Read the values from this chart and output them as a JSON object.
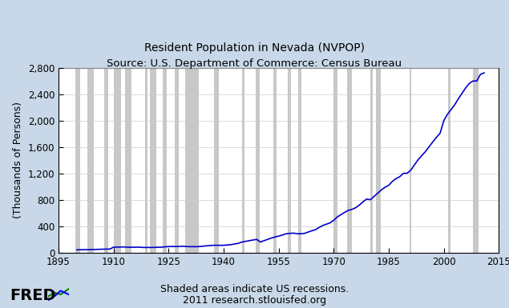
{
  "title_line1": "Resident Population in Nevada (NVPOP)",
  "title_line2": "Source: U.S. Department of Commerce: Census Bureau",
  "ylabel": "(Thousands of Persons)",
  "xlabel_note1": "Shaded areas indicate US recessions.",
  "xlabel_note2": "2011 research.stlouisfed.org",
  "xlim": [
    1895,
    2015
  ],
  "ylim": [
    0,
    2800
  ],
  "yticks": [
    0,
    400,
    800,
    1200,
    1600,
    2000,
    2400,
    2800
  ],
  "xticks": [
    1895,
    1910,
    1925,
    1940,
    1955,
    1970,
    1985,
    2000,
    2015
  ],
  "background_outer": "#c8d8e8",
  "background_plot": "#ffffff",
  "recession_color": "#c8c8c8",
  "line_color": "#0000cc",
  "recessions": [
    [
      1899.583,
      1900.917
    ],
    [
      1902.833,
      1904.583
    ],
    [
      1907.417,
      1908.583
    ],
    [
      1910.083,
      1912.0
    ],
    [
      1913.083,
      1914.917
    ],
    [
      1918.667,
      1919.333
    ],
    [
      1920.0,
      1921.583
    ],
    [
      1923.417,
      1924.583
    ],
    [
      1926.75,
      1927.833
    ],
    [
      1929.583,
      1933.25
    ],
    [
      1937.417,
      1938.583
    ],
    [
      1945.0,
      1945.75
    ],
    [
      1948.75,
      1949.75
    ],
    [
      1953.583,
      1954.333
    ],
    [
      1957.583,
      1958.333
    ],
    [
      1960.333,
      1961.167
    ],
    [
      1969.917,
      1970.917
    ],
    [
      1973.75,
      1975.0
    ],
    [
      1980.0,
      1980.583
    ],
    [
      1981.417,
      1982.917
    ],
    [
      1990.583,
      1991.167
    ],
    [
      2001.083,
      2001.917
    ],
    [
      2007.917,
      2009.5
    ]
  ],
  "data_years": [
    1900,
    1901,
    1902,
    1903,
    1904,
    1905,
    1906,
    1907,
    1908,
    1909,
    1910,
    1911,
    1912,
    1913,
    1914,
    1915,
    1916,
    1917,
    1918,
    1919,
    1920,
    1921,
    1922,
    1923,
    1924,
    1925,
    1926,
    1927,
    1928,
    1929,
    1930,
    1931,
    1932,
    1933,
    1934,
    1935,
    1936,
    1937,
    1938,
    1939,
    1940,
    1941,
    1942,
    1943,
    1944,
    1945,
    1946,
    1947,
    1948,
    1949,
    1950,
    1951,
    1952,
    1953,
    1954,
    1955,
    1956,
    1957,
    1958,
    1959,
    1960,
    1961,
    1962,
    1963,
    1964,
    1965,
    1966,
    1967,
    1968,
    1969,
    1970,
    1971,
    1972,
    1973,
    1974,
    1975,
    1976,
    1977,
    1978,
    1979,
    1980,
    1981,
    1982,
    1983,
    1984,
    1985,
    1986,
    1987,
    1988,
    1989,
    1990,
    1991,
    1992,
    1993,
    1994,
    1995,
    1996,
    1997,
    1998,
    1999,
    2000,
    2001,
    2002,
    2003,
    2004,
    2005,
    2006,
    2007,
    2008,
    2009,
    2010,
    2011
  ],
  "data_values": [
    42,
    43,
    44,
    45,
    46,
    47,
    49,
    51,
    52,
    53,
    82,
    83,
    84,
    85,
    80,
    80,
    81,
    82,
    77,
    77,
    77,
    78,
    80,
    82,
    87,
    91,
    92,
    91,
    94,
    96,
    91,
    90,
    89,
    90,
    95,
    100,
    105,
    110,
    110,
    110,
    110,
    115,
    120,
    130,
    140,
    160,
    170,
    180,
    190,
    200,
    160,
    180,
    200,
    220,
    235,
    250,
    265,
    285,
    290,
    295,
    285,
    285,
    290,
    310,
    330,
    345,
    380,
    410,
    430,
    450,
    489,
    540,
    575,
    610,
    640,
    655,
    680,
    720,
    770,
    810,
    800,
    850,
    900,
    950,
    990,
    1020,
    1080,
    1120,
    1150,
    1200,
    1202,
    1248,
    1328,
    1407,
    1469,
    1530,
    1603,
    1677,
    1746,
    1809,
    1998,
    2095,
    2167,
    2241,
    2333,
    2415,
    2498,
    2566,
    2600,
    2600,
    2701,
    2723
  ],
  "fred_text": "FRED",
  "title_fontsize": 10,
  "axis_fontsize": 9,
  "tick_fontsize": 8.5
}
